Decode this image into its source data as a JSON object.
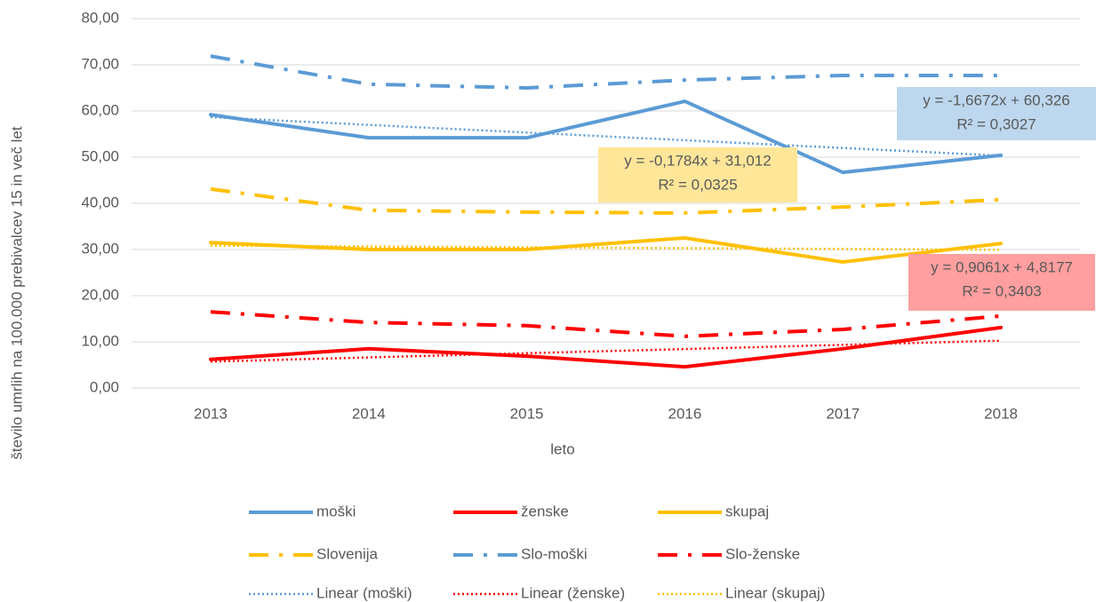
{
  "chart_data": {
    "type": "line",
    "x_label": "leto",
    "y_label": "število umrlih na 100.000 prebivalcev 15 in več let",
    "categories": [
      "2013",
      "2014",
      "2015",
      "2016",
      "2017",
      "2018"
    ],
    "ylim": [
      0,
      80
    ],
    "yticks": [
      {
        "value": 0,
        "label": "0,00"
      },
      {
        "value": 10,
        "label": "10,00"
      },
      {
        "value": 20,
        "label": "20,00"
      },
      {
        "value": 30,
        "label": "30,00"
      },
      {
        "value": 40,
        "label": "40,00"
      },
      {
        "value": 50,
        "label": "50,00"
      },
      {
        "value": 60,
        "label": "60,00"
      },
      {
        "value": 70,
        "label": "70,00"
      },
      {
        "value": 80,
        "label": "80,00"
      }
    ],
    "grid": true,
    "legend": "bottom",
    "series": [
      {
        "name": "moški",
        "color": "#5b9bd5",
        "dash": "solid",
        "values": [
          59.2,
          54.2,
          54.2,
          62.1,
          46.7,
          50.4
        ]
      },
      {
        "name": "ženske",
        "color": "#ff0000",
        "dash": "solid",
        "values": [
          6.2,
          8.5,
          6.9,
          4.6,
          8.5,
          13.1
        ]
      },
      {
        "name": "skupaj",
        "color": "#ffc000",
        "dash": "solid",
        "values": [
          31.5,
          30.0,
          30.0,
          32.5,
          27.3,
          31.3
        ]
      },
      {
        "name": "Slovenija",
        "color": "#ffc000",
        "dash": "dashdot",
        "values": [
          43.1,
          38.5,
          38.1,
          37.9,
          39.2,
          40.8
        ]
      },
      {
        "name": "Slo-moški",
        "color": "#5b9bd5",
        "dash": "dashdot",
        "values": [
          71.9,
          65.8,
          65.0,
          66.7,
          67.7,
          67.7
        ]
      },
      {
        "name": "Slo-ženske",
        "color": "#ff0000",
        "dash": "dashdot",
        "values": [
          16.5,
          14.2,
          13.5,
          11.2,
          12.7,
          15.6
        ]
      },
      {
        "name": "Linear (moški)",
        "color": "#5b9bd5",
        "dash": "dot",
        "values": [
          58.66,
          56.99,
          55.33,
          53.66,
          51.99,
          50.32
        ]
      },
      {
        "name": "Linear (ženske)",
        "color": "#ff0000",
        "dash": "dot",
        "values": [
          5.72,
          6.63,
          7.54,
          8.44,
          9.35,
          10.25
        ]
      },
      {
        "name": "Linear (skupaj)",
        "color": "#ffc000",
        "dash": "dot",
        "values": [
          30.83,
          30.66,
          30.48,
          30.3,
          30.12,
          29.94
        ]
      }
    ],
    "annotations": [
      {
        "lines": [
          "y = -1,6672x + 60,326",
          "R² = 0,3027"
        ],
        "color": "#bdd7ee"
      },
      {
        "lines": [
          "y = -0,1784x + 31,012",
          "R² = 0,0325"
        ],
        "color": "#ffe699"
      },
      {
        "lines": [
          "y = 0,9061x + 4,8177",
          "R² = 0,3403"
        ],
        "color": "#ff9f9f"
      }
    ]
  }
}
